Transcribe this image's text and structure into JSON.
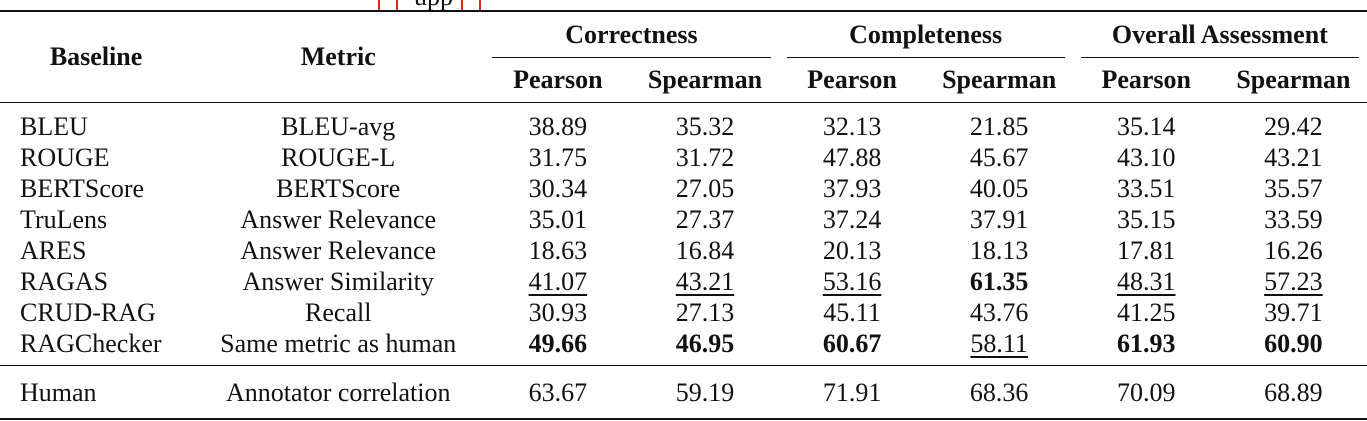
{
  "caption_fragment": {
    "text": "upp"
  },
  "table": {
    "headers": {
      "baseline": "Baseline",
      "metric": "Metric",
      "groups": [
        "Correctness",
        "Completeness",
        "Overall Assessment"
      ],
      "sub": [
        "Pearson",
        "Spearman",
        "Pearson",
        "Spearman",
        "Pearson",
        "Spearman"
      ]
    },
    "rows": [
      {
        "baseline": "BLEU",
        "metric": "BLEU-avg",
        "values": [
          "38.89",
          "35.32",
          "32.13",
          "21.85",
          "35.14",
          "29.42"
        ],
        "styles": [
          "",
          "",
          "",
          "",
          "",
          ""
        ]
      },
      {
        "baseline": "ROUGE",
        "metric": "ROUGE-L",
        "values": [
          "31.75",
          "31.72",
          "47.88",
          "45.67",
          "43.10",
          "43.21"
        ],
        "styles": [
          "",
          "",
          "",
          "",
          "",
          ""
        ]
      },
      {
        "baseline": "BERTScore",
        "metric": "BERTScore",
        "values": [
          "30.34",
          "27.05",
          "37.93",
          "40.05",
          "33.51",
          "35.57"
        ],
        "styles": [
          "",
          "",
          "",
          "",
          "",
          ""
        ]
      },
      {
        "baseline": "TruLens",
        "metric": "Answer Relevance",
        "values": [
          "35.01",
          "27.37",
          "37.24",
          "37.91",
          "35.15",
          "33.59"
        ],
        "styles": [
          "",
          "",
          "",
          "",
          "",
          ""
        ]
      },
      {
        "baseline": "ARES",
        "metric": "Answer Relevance",
        "values": [
          "18.63",
          "16.84",
          "20.13",
          "18.13",
          "17.81",
          "16.26"
        ],
        "styles": [
          "",
          "",
          "",
          "",
          "",
          ""
        ]
      },
      {
        "baseline": "RAGAS",
        "metric": "Answer Similarity",
        "values": [
          "41.07",
          "43.21",
          "53.16",
          "61.35",
          "48.31",
          "57.23"
        ],
        "styles": [
          "underline",
          "underline",
          "underline",
          "bold",
          "underline",
          "underline"
        ]
      },
      {
        "baseline": "CRUD-RAG",
        "metric": "Recall",
        "values": [
          "30.93",
          "27.13",
          "45.11",
          "43.76",
          "41.25",
          "39.71"
        ],
        "styles": [
          "",
          "",
          "",
          "",
          "",
          ""
        ]
      },
      {
        "baseline": "RAGChecker",
        "metric": "Same metric as human",
        "values": [
          "49.66",
          "46.95",
          "60.67",
          "58.11",
          "61.93",
          "60.90"
        ],
        "styles": [
          "bold",
          "bold",
          "bold",
          "underline",
          "bold",
          "bold"
        ]
      }
    ],
    "human_row": {
      "baseline": "Human",
      "metric": "Annotator correlation",
      "values": [
        "63.67",
        "59.19",
        "71.91",
        "68.36",
        "70.09",
        "68.89"
      ]
    }
  }
}
